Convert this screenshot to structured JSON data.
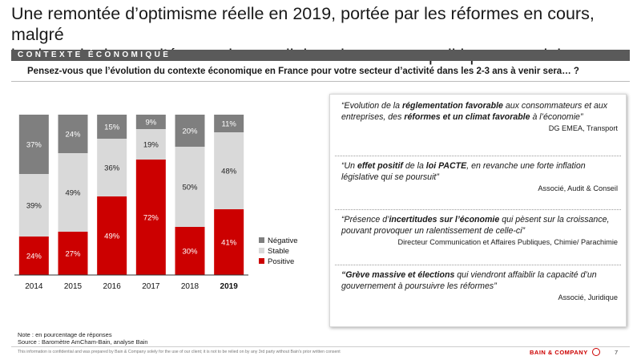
{
  "title_lines": [
    "Une remontée d’optimisme réelle en 2019, portée par les réformes en cours, malgré",
    "les incertitudes sur l’économie mondiale et le contexte politique et social"
  ],
  "section": "CONTEXTE ÉCONOMIQUE",
  "question": "Pensez-vous que l’évolution du contexte économique en France pour votre secteur d’activité dans les 2-3 ans à venir sera… ?",
  "chart_data": {
    "type": "bar",
    "stacked": true,
    "normalized_percent": true,
    "categories": [
      "2014",
      "2015",
      "2016",
      "2017",
      "2018",
      "2019"
    ],
    "bold_category": "2019",
    "series": [
      {
        "name": "Positive",
        "color": "#cc0000",
        "label_color": "#ffffff",
        "values": [
          24,
          27,
          49,
          72,
          30,
          41
        ]
      },
      {
        "name": "Stable",
        "color": "#d9d9d9",
        "label_color": "#222222",
        "values": [
          39,
          49,
          36,
          19,
          50,
          48
        ]
      },
      {
        "name": "Négative",
        "color": "#7f7f7f",
        "label_color": "#ffffff",
        "values": [
          37,
          24,
          15,
          9,
          20,
          11
        ]
      }
    ],
    "data_labels": [
      [
        "24%",
        "27%",
        "49%",
        "72%",
        "30%",
        "41%"
      ],
      [
        "39%",
        "49%",
        "36%",
        "19%",
        "50%",
        "48%"
      ],
      [
        "37%",
        "24%",
        "15%",
        "9%",
        "20%",
        "11%"
      ]
    ],
    "legend_order": [
      "Négative",
      "Stable",
      "Positive"
    ],
    "legend_position": "right",
    "grid": false
  },
  "quotes": [
    {
      "parts": [
        {
          "t": "“Evolution de la ",
          "b": false
        },
        {
          "t": "réglementation favorable",
          "b": true
        },
        {
          "t": " aux consommateurs et aux entreprises, des ",
          "b": false
        },
        {
          "t": "réformes et un climat favorable",
          "b": true
        },
        {
          "t": " à l’économie”",
          "b": false
        }
      ],
      "author": "DG EMEA, Transport"
    },
    {
      "parts": [
        {
          "t": "“Un ",
          "b": false
        },
        {
          "t": "effet positif",
          "b": true
        },
        {
          "t": " de la ",
          "b": false
        },
        {
          "t": "loi PACTE",
          "b": true
        },
        {
          "t": ", en revanche une forte inflation législative qui se poursuit”",
          "b": false
        }
      ],
      "author": "Associé, Audit & Conseil"
    },
    {
      "parts": [
        {
          "t": "“Présence d’",
          "b": false
        },
        {
          "t": "incertitudes sur l’économie",
          "b": true
        },
        {
          "t": " qui pèsent sur la croissance, pouvant provoquer un ralentissement de celle-ci”",
          "b": false
        }
      ],
      "author": "Directeur Communication et Affaires Publiques, Chimie/ Parachimie"
    },
    {
      "parts": [
        {
          "t": "“Grève massive et élections",
          "b": true
        },
        {
          "t": " qui viendront affaiblir la capacité d’un gouvernement à poursuivre les réformes”",
          "b": false
        }
      ],
      "author": "Associé, Juridique"
    }
  ],
  "note_lines": [
    "Note : en pourcentage de réponses",
    "Source : Baromètre AmCham-Bain, analyse Bain"
  ],
  "disclaimer": "This information is confidential and was prepared by Bain & Company solely for the use of our client; it is not to be relied on by any 3rd party without Bain's prior written consent",
  "logo_text": "BAIN & COMPANY",
  "page_number": "7"
}
